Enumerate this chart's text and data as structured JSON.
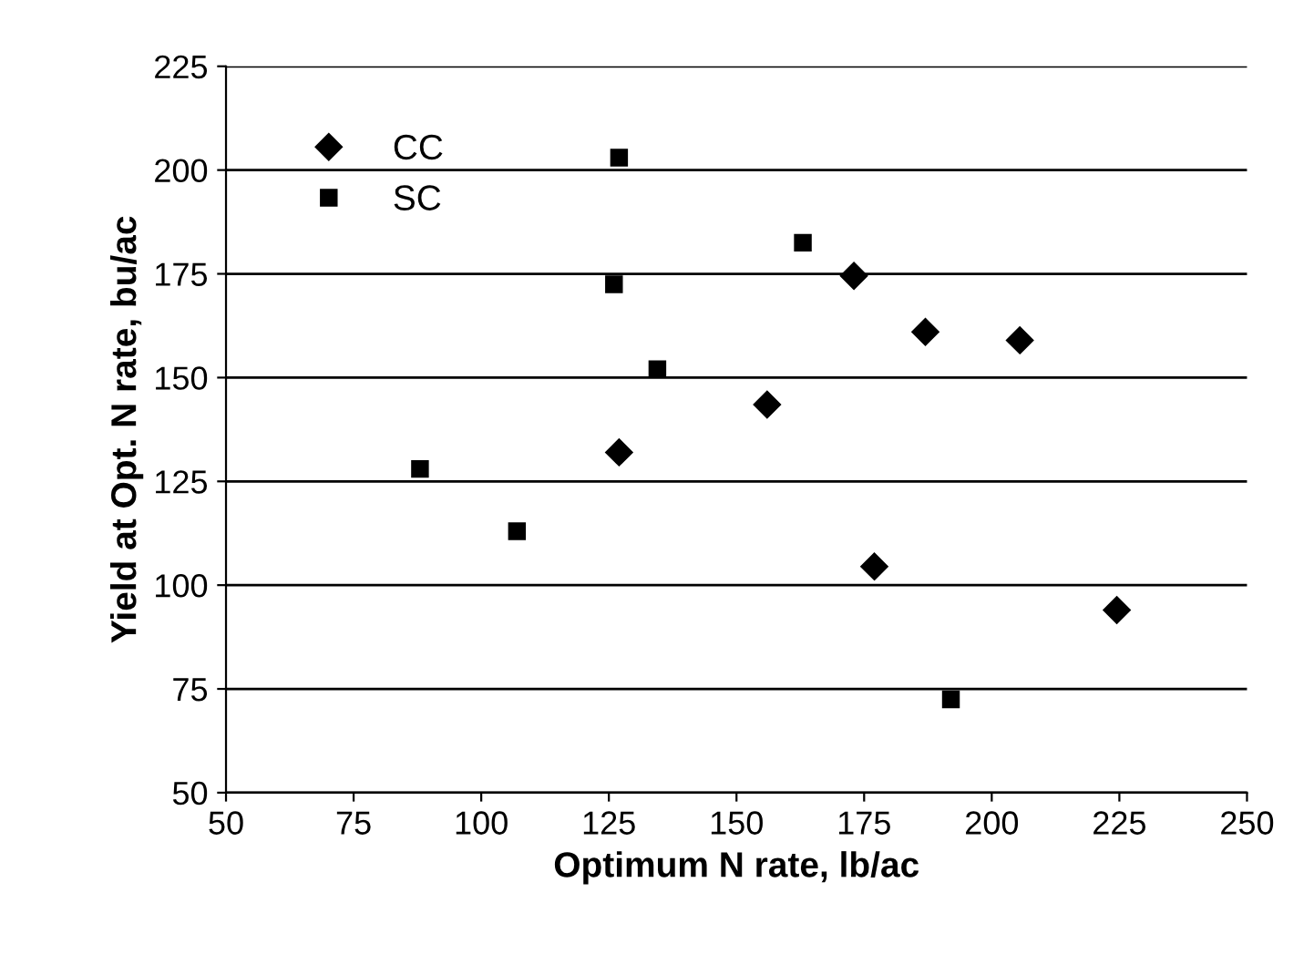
{
  "chart_data": {
    "type": "scatter",
    "xlabel": "Optimum N rate, lb/ac",
    "ylabel": "Yield at Opt. N rate, bu/ac",
    "series": [
      {
        "name": "CC",
        "color": "#000000",
        "marker": "diamond",
        "x": [
          127,
          156,
          173,
          187,
          205.5,
          177,
          224.5
        ],
        "values": [
          132,
          143.5,
          174.5,
          161,
          159,
          104.5,
          94
        ]
      },
      {
        "name": "SC",
        "color": "#000000",
        "marker": "square",
        "x": [
          127,
          126,
          134.5,
          163,
          88,
          107,
          192
        ],
        "values": [
          203,
          172.5,
          152,
          182.5,
          128,
          113,
          72.5
        ]
      }
    ],
    "xlim": [
      50,
      250
    ],
    "xticks": [
      50,
      75,
      100,
      125,
      150,
      175,
      200,
      225,
      250
    ],
    "ylim": [
      50,
      225
    ],
    "yticks": [
      50,
      75,
      100,
      125,
      150,
      175,
      200,
      225
    ],
    "grid": "y",
    "legend": "top left"
  }
}
